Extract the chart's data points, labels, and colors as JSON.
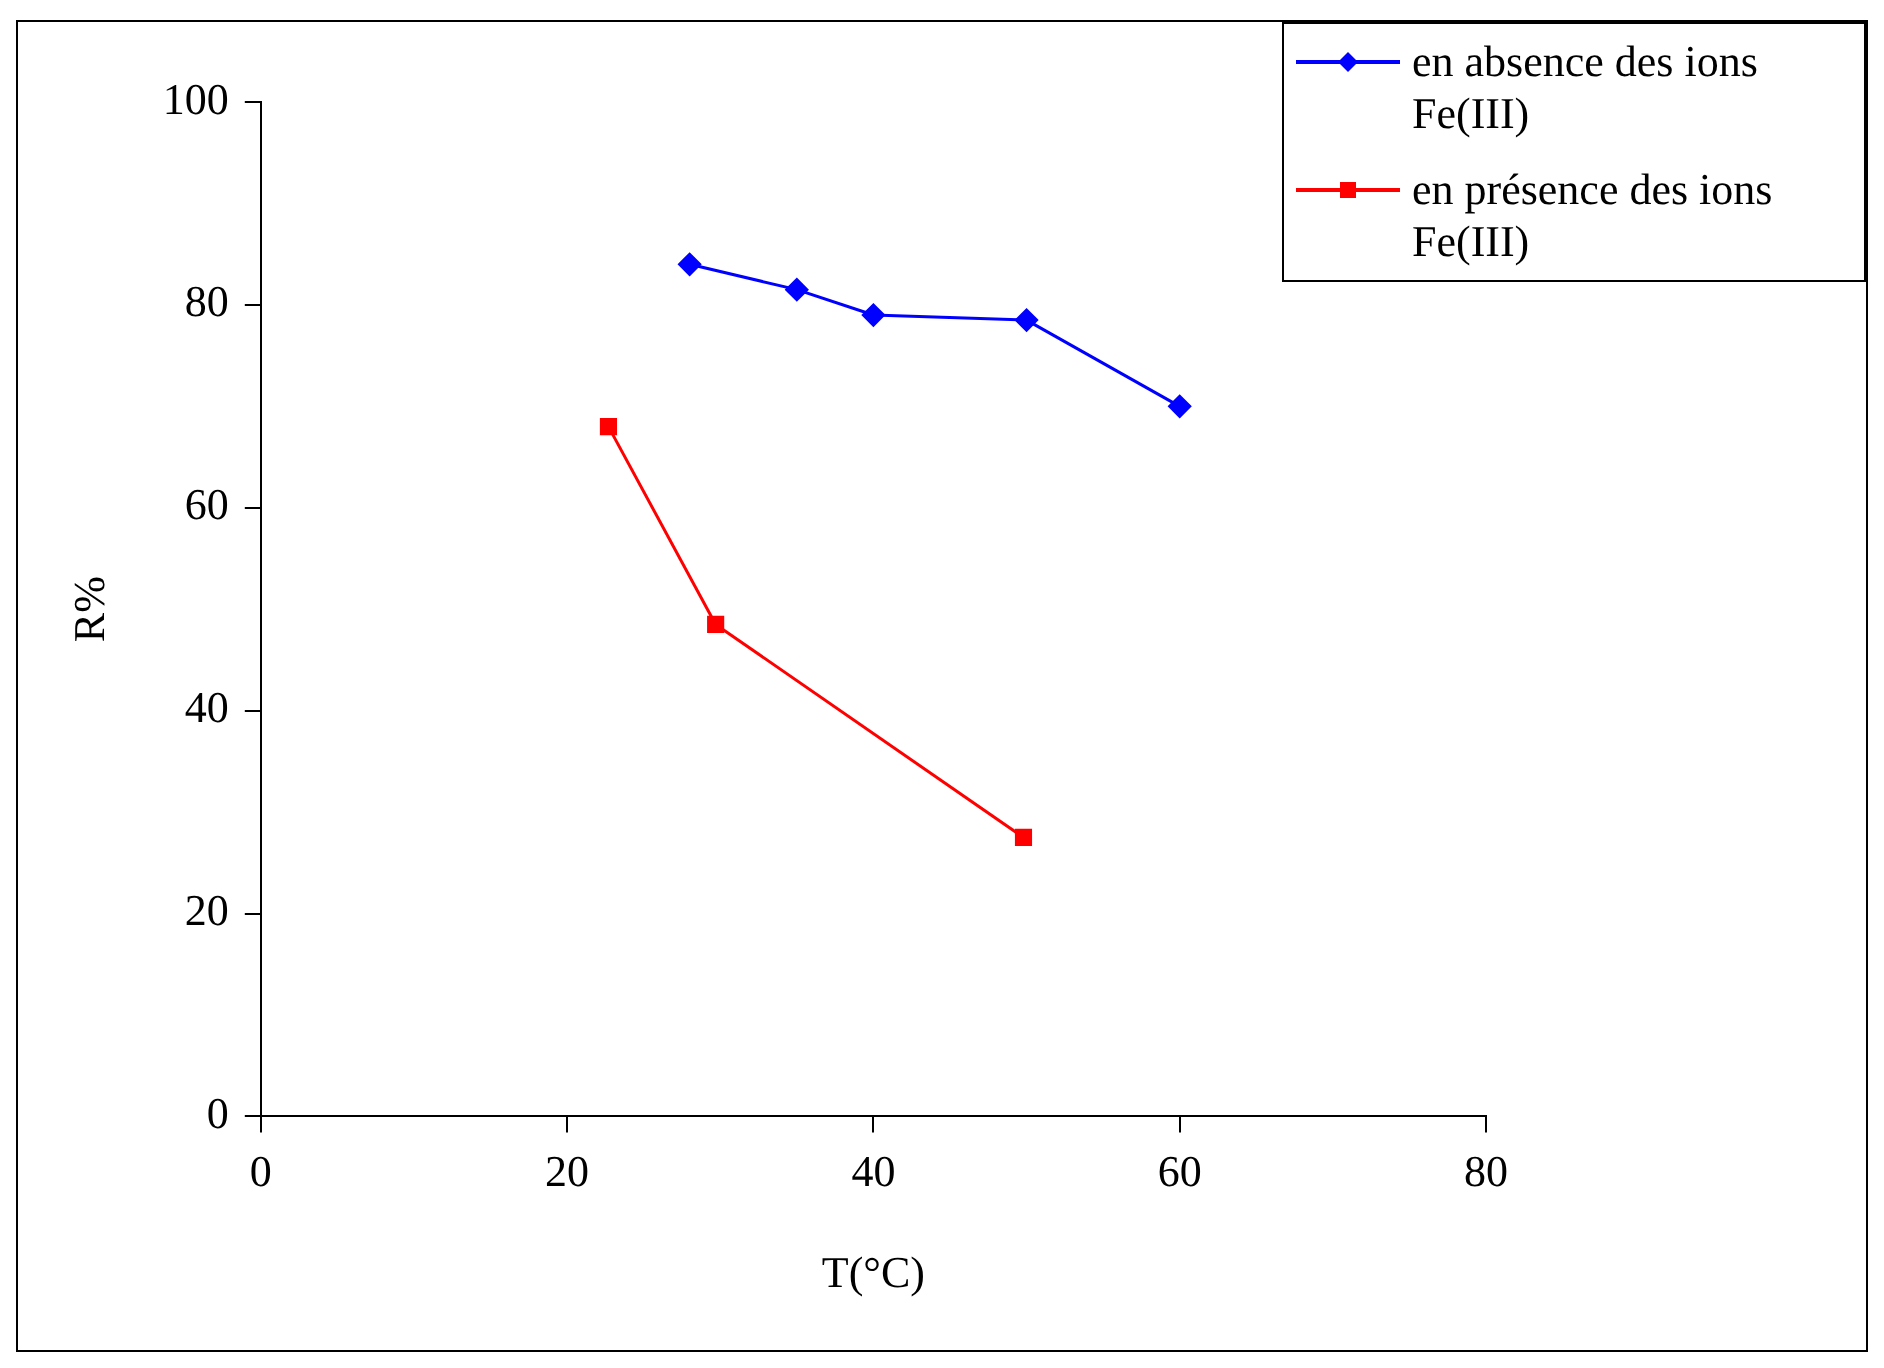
{
  "chart_data": {
    "type": "line",
    "xlabel": "T(°C)",
    "ylabel": "R%",
    "xlim": [
      0,
      80
    ],
    "xticks": [
      0,
      20,
      40,
      60,
      80
    ],
    "ylim": [
      0,
      100
    ],
    "yticks": [
      0,
      20,
      40,
      60,
      80,
      100
    ],
    "grid": false,
    "legend": "top right",
    "series": [
      {
        "name": "en absence des ions Fe(III)",
        "color": "#0000ff",
        "marker": "diamond",
        "x": [
          28,
          35,
          40,
          50,
          60
        ],
        "values": [
          84,
          81.5,
          79,
          78.5,
          70
        ]
      },
      {
        "name": "en présence des ions Fe(III)",
        "color": "#ff0000",
        "marker": "square",
        "x": [
          22.7,
          29.7,
          49.8
        ],
        "values": [
          68,
          48.5,
          27.5
        ]
      }
    ]
  }
}
